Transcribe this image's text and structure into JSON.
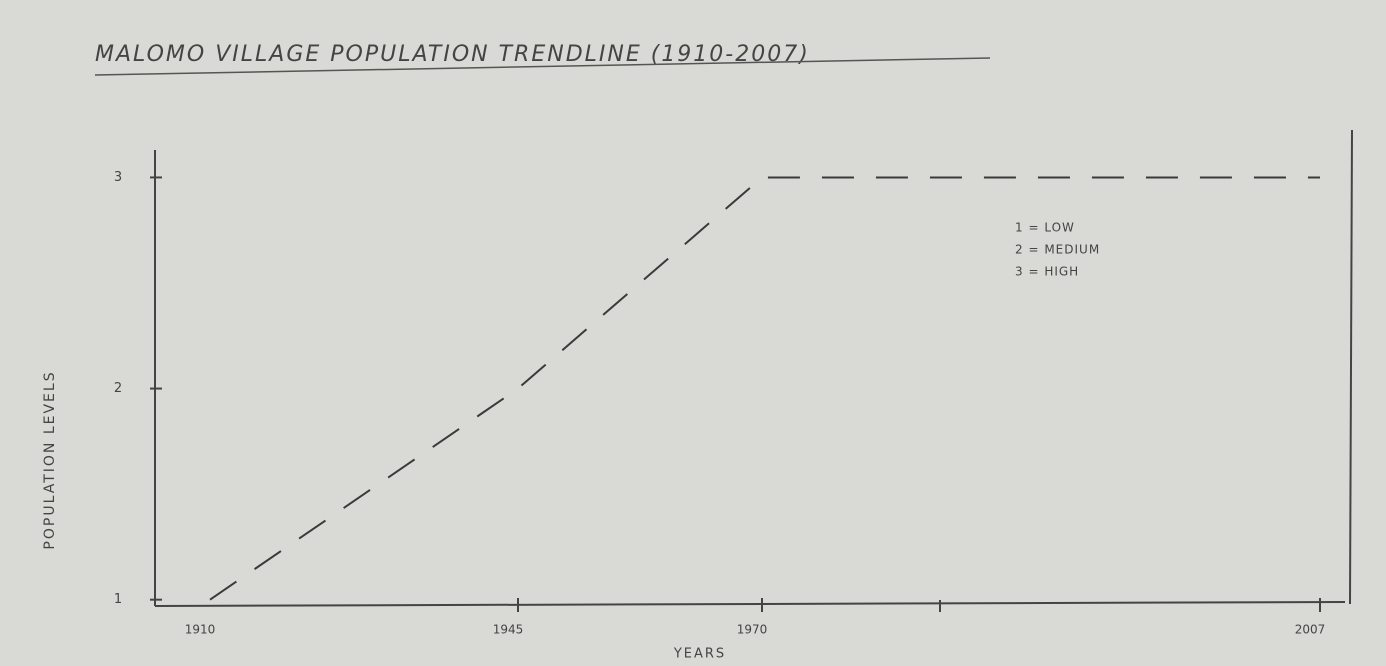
{
  "chart_data": {
    "type": "line",
    "title": "MALOMO VILLAGE POPULATION TRENDLINE (1910-2007)",
    "x_label": "YEARS",
    "y_label": "POPULATION LEVELS",
    "categories": [
      "1910",
      "1945",
      "1970",
      "2007"
    ],
    "values": [
      1,
      2,
      3,
      3
    ],
    "color": "#3a3a3a",
    "line_style": "dashed",
    "ylim": [
      0.97,
      3.13
    ],
    "yticks": [
      1,
      2,
      3
    ],
    "annotations": [
      "1 = LOW",
      "2 = MEDIUM",
      "3 = HIGH"
    ]
  }
}
